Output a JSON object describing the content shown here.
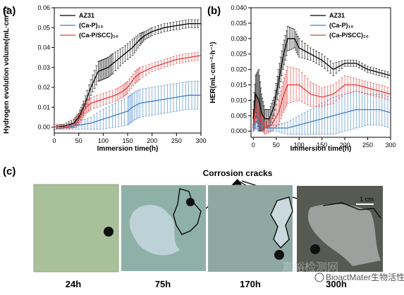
{
  "chart_data": [
    {
      "panel": "(a)",
      "type": "line",
      "xlabel": "Immersion time(h)",
      "ylabel": "Hydrogen evolution volume(mL·cm⁻²)",
      "xlim": [
        0,
        300
      ],
      "ylim": [
        -0.003,
        0.06
      ],
      "xticks": [
        "0",
        "50",
        "100",
        "150",
        "200",
        "250",
        "300"
      ],
      "yticks": [
        "0.00",
        "0.01",
        "0.02",
        "0.03",
        "0.04",
        "0.05",
        "0.06"
      ],
      "legend_position": "top-left",
      "error_bars": true,
      "series": [
        {
          "name": "AZ31",
          "color": "#000000",
          "x": [
            0,
            20,
            40,
            50,
            60,
            75,
            90,
            100,
            110,
            120,
            140,
            160,
            175,
            185,
            200,
            225,
            250,
            275,
            300
          ],
          "y": [
            0.0,
            0.0005,
            0.002,
            0.005,
            0.01,
            0.02,
            0.028,
            0.029,
            0.03,
            0.032,
            0.036,
            0.04,
            0.044,
            0.046,
            0.048,
            0.05,
            0.051,
            0.052,
            0.052
          ],
          "err": [
            0.001,
            0.001,
            0.002,
            0.002,
            0.003,
            0.004,
            0.005,
            0.005,
            0.005,
            0.005,
            0.004,
            0.004,
            0.003,
            0.002,
            0.002,
            0.002,
            0.002,
            0.002,
            0.002
          ]
        },
        {
          "name": "(Ca-P)₁₀",
          "color": "#3c7fc9",
          "x": [
            0,
            25,
            50,
            75,
            100,
            125,
            150,
            160,
            175,
            200,
            225,
            250,
            275,
            300
          ],
          "y": [
            0.0,
            0.0,
            0.001,
            0.002,
            0.004,
            0.006,
            0.008,
            0.01,
            0.012,
            0.013,
            0.014,
            0.015,
            0.016,
            0.016
          ],
          "err": [
            0.001,
            0.001,
            0.002,
            0.003,
            0.005,
            0.006,
            0.007,
            0.007,
            0.007,
            0.007,
            0.007,
            0.007,
            0.007,
            0.007
          ]
        },
        {
          "name": "(Ca-P/SCC)₁₀",
          "color": "#e03c3c",
          "x": [
            0,
            25,
            45,
            55,
            65,
            75,
            100,
            125,
            140,
            150,
            165,
            175,
            200,
            225,
            250,
            275,
            300
          ],
          "y": [
            0.0,
            0.0,
            0.002,
            0.006,
            0.01,
            0.012,
            0.014,
            0.016,
            0.018,
            0.02,
            0.025,
            0.027,
            0.03,
            0.032,
            0.034,
            0.035,
            0.036
          ],
          "err": [
            0.001,
            0.001,
            0.002,
            0.003,
            0.003,
            0.003,
            0.003,
            0.003,
            0.003,
            0.003,
            0.003,
            0.003,
            0.002,
            0.002,
            0.002,
            0.002,
            0.002
          ]
        }
      ]
    },
    {
      "panel": "(b)",
      "type": "line",
      "xlabel": "Immersion time(h)",
      "ylabel": "HER(mL·cm⁻²·h⁻¹)",
      "xlim": [
        -5,
        300
      ],
      "ylim": [
        -0.002,
        0.04
      ],
      "xticks": [
        "0",
        "50",
        "100",
        "150",
        "200",
        "250",
        "300"
      ],
      "yticks": [
        "0.000",
        "0.005",
        "0.010",
        "0.015",
        "0.020",
        "0.025",
        "0.030",
        "0.035",
        "0.040"
      ],
      "legend_position": "top-right",
      "error_bars": true,
      "series": [
        {
          "name": "AZ31",
          "color": "#000000",
          "x": [
            0,
            5,
            12,
            18,
            25,
            35,
            45,
            55,
            65,
            75,
            90,
            100,
            125,
            150,
            175,
            200,
            225,
            250,
            275,
            300
          ],
          "y": [
            0.004,
            0.012,
            0.01,
            0.006,
            0.004,
            0.004,
            0.008,
            0.016,
            0.024,
            0.03,
            0.03,
            0.027,
            0.025,
            0.023,
            0.02,
            0.022,
            0.022,
            0.02,
            0.019,
            0.018
          ],
          "err": [
            0.003,
            0.006,
            0.01,
            0.006,
            0.003,
            0.003,
            0.003,
            0.004,
            0.004,
            0.004,
            0.003,
            0.003,
            0.002,
            0.002,
            0.002,
            0.001,
            0.001,
            0.001,
            0.001,
            0.001
          ]
        },
        {
          "name": "(Ca-P)₁₀",
          "color": "#3c7fc9",
          "x": [
            0,
            5,
            15,
            25,
            50,
            75,
            100,
            125,
            150,
            175,
            200,
            225,
            250,
            275,
            300
          ],
          "y": [
            0.001,
            0.003,
            0.002,
            0.001,
            0.001,
            0.001,
            0.002,
            0.003,
            0.004,
            0.005,
            0.006,
            0.007,
            0.007,
            0.007,
            0.006
          ],
          "err": [
            0.001,
            0.002,
            0.002,
            0.001,
            0.001,
            0.002,
            0.003,
            0.004,
            0.005,
            0.006,
            0.006,
            0.006,
            0.005,
            0.005,
            0.005
          ]
        },
        {
          "name": "(Ca-P/SCC)₁₀",
          "color": "#e03c3c",
          "x": [
            0,
            5,
            15,
            25,
            40,
            55,
            65,
            75,
            100,
            125,
            150,
            175,
            200,
            225,
            250,
            275,
            300
          ],
          "y": [
            0.001,
            0.008,
            0.004,
            0.001,
            0.002,
            0.006,
            0.011,
            0.015,
            0.015,
            0.012,
            0.011,
            0.012,
            0.015,
            0.015,
            0.014,
            0.013,
            0.012
          ],
          "err": [
            0.001,
            0.004,
            0.003,
            0.002,
            0.002,
            0.004,
            0.005,
            0.006,
            0.005,
            0.004,
            0.003,
            0.003,
            0.003,
            0.002,
            0.002,
            0.002,
            0.002
          ]
        }
      ]
    }
  ],
  "panels": {
    "a_label": "(a)",
    "b_label": "(b)",
    "c_label": "(c)"
  },
  "photos": {
    "annotation": "Corrosion cracks",
    "scale_bar": "1 cm",
    "labels": [
      "24h",
      "75h",
      "170h",
      "300h"
    ]
  },
  "watermark": {
    "text": "BioactMater生物活性材料",
    "faint": "嘉峪检测网"
  },
  "colors": {
    "az31": "#000000",
    "cap": "#3c7fc9",
    "capscc": "#e03c3c"
  }
}
